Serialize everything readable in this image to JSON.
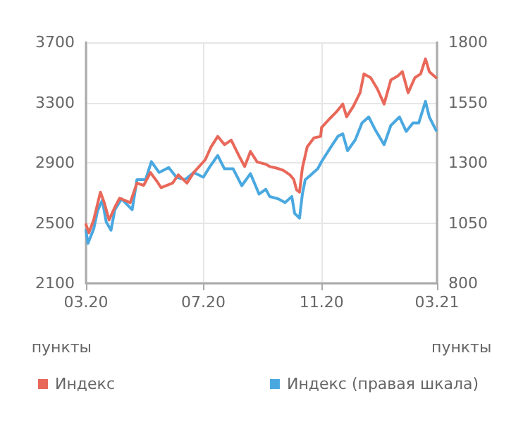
{
  "chart_data": {
    "type": "line",
    "ylabel": "пункты",
    "y2label": "пункты",
    "xlim": [
      "2020-03-01",
      "2021-03-01"
    ],
    "xticks": [
      {
        "value": "2020-03-01",
        "label": "03.20"
      },
      {
        "value": "2020-07-01",
        "label": "07.20"
      },
      {
        "value": "2020-11-01",
        "label": "11.20"
      },
      {
        "value": "2021-03-01",
        "label": "03.21"
      }
    ],
    "ylim": [
      2100,
      3700
    ],
    "yticks": [
      2100,
      2500,
      2900,
      3300,
      3700
    ],
    "y2lim": [
      800,
      1800
    ],
    "y2ticks": [
      800,
      1050,
      1300,
      1550,
      1800
    ],
    "grid": true,
    "legend": "bottom",
    "marker": "none",
    "line_style": "solid",
    "series": [
      {
        "name": "Индекс",
        "color": "#e8685a",
        "x": [
          "2020-03-01",
          "2020-03-04",
          "2020-03-09",
          "2020-03-16",
          "2020-03-20",
          "2020-03-25",
          "2020-03-31",
          "2020-04-05",
          "2020-04-16",
          "2020-04-23",
          "2020-04-30",
          "2020-05-07",
          "2020-05-14",
          "2020-05-18",
          "2020-05-30",
          "2020-06-05",
          "2020-06-14",
          "2020-06-21",
          "2020-07-03",
          "2020-07-09",
          "2020-07-16",
          "2020-07-23",
          "2020-07-30",
          "2020-08-08",
          "2020-08-13",
          "2020-08-19",
          "2020-08-26",
          "2020-09-04",
          "2020-09-08",
          "2020-09-15",
          "2020-09-22",
          "2020-09-29",
          "2020-10-03",
          "2020-10-06",
          "2020-10-09",
          "2020-10-12",
          "2020-10-17",
          "2020-10-24",
          "2020-10-31",
          "2020-11-01",
          "2020-11-09",
          "2020-11-16",
          "2020-11-23",
          "2020-11-27",
          "2020-12-04",
          "2020-12-11",
          "2020-12-15",
          "2020-12-22",
          "2020-12-29",
          "2021-01-05",
          "2021-01-12",
          "2021-01-19",
          "2021-01-24",
          "2021-01-30",
          "2021-02-06",
          "2021-02-12",
          "2021-02-17",
          "2021-02-21",
          "2021-02-28"
        ],
        "values": [
          2490,
          2435,
          2520,
          2705,
          2635,
          2520,
          2605,
          2665,
          2635,
          2765,
          2750,
          2835,
          2775,
          2735,
          2765,
          2820,
          2765,
          2835,
          2920,
          3005,
          3075,
          3020,
          3050,
          2935,
          2875,
          2975,
          2905,
          2890,
          2875,
          2865,
          2850,
          2820,
          2790,
          2720,
          2705,
          2865,
          3005,
          3065,
          3075,
          3135,
          3190,
          3235,
          3290,
          3205,
          3275,
          3365,
          3490,
          3465,
          3390,
          3290,
          3450,
          3475,
          3505,
          3365,
          3465,
          3490,
          3590,
          3505,
          3465
        ]
      },
      {
        "name": "Индекс (правая шкала)",
        "color": "#4aa8e0",
        "axis": "y2",
        "x": [
          "2020-03-01",
          "2020-03-03",
          "2020-03-09",
          "2020-03-13",
          "2020-03-18",
          "2020-03-22",
          "2020-03-27",
          "2020-03-31",
          "2020-04-07",
          "2020-04-18",
          "2020-04-23",
          "2020-05-02",
          "2020-05-08",
          "2020-05-16",
          "2020-05-26",
          "2020-06-03",
          "2020-06-12",
          "2020-06-21",
          "2020-07-01",
          "2020-07-08",
          "2020-07-16",
          "2020-07-23",
          "2020-08-01",
          "2020-08-10",
          "2020-08-19",
          "2020-08-28",
          "2020-09-04",
          "2020-09-08",
          "2020-09-17",
          "2020-09-24",
          "2020-10-01",
          "2020-10-04",
          "2020-10-09",
          "2020-10-12",
          "2020-10-15",
          "2020-10-21",
          "2020-10-28",
          "2020-11-01",
          "2020-11-09",
          "2020-11-18",
          "2020-11-23",
          "2020-11-28",
          "2020-12-06",
          "2020-12-13",
          "2020-12-20",
          "2020-12-27",
          "2021-01-05",
          "2021-01-12",
          "2021-01-21",
          "2021-01-28",
          "2021-02-04",
          "2021-02-10",
          "2021-02-17",
          "2021-02-21",
          "2021-02-28"
        ],
        "values": [
          1020,
          965,
          1025,
          1100,
          1145,
          1055,
          1020,
          1105,
          1150,
          1105,
          1230,
          1230,
          1305,
          1260,
          1280,
          1240,
          1230,
          1260,
          1240,
          1285,
          1330,
          1275,
          1275,
          1205,
          1255,
          1170,
          1190,
          1160,
          1150,
          1135,
          1160,
          1090,
          1070,
          1170,
          1230,
          1250,
          1275,
          1305,
          1355,
          1410,
          1420,
          1350,
          1395,
          1465,
          1490,
          1435,
          1375,
          1455,
          1490,
          1430,
          1465,
          1465,
          1555,
          1490,
          1435
        ]
      }
    ]
  }
}
